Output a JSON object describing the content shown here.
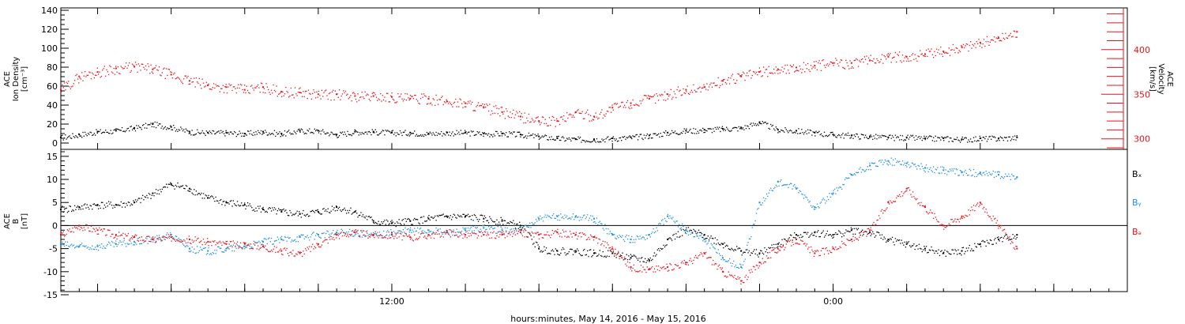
{
  "colors": {
    "black": "#000000",
    "red": "#e8131b",
    "blue": "#1f8ee0",
    "axis": "#000000"
  },
  "xaxis": {
    "label": "hours:minutes, May 14, 2016 - May 15, 2016",
    "ticks": [
      {
        "hour": 12,
        "label": "12:00"
      },
      {
        "hour": 24,
        "label": "0:00"
      }
    ],
    "range_hours": [
      3,
      32
    ]
  },
  "chart_data": [
    {
      "type": "scatter",
      "panel": "density",
      "ylabel": "ACE\nIon Density\n[cm⁻³]",
      "ylim": [
        0,
        140
      ],
      "yticks": [
        "0",
        "20",
        "40",
        "60",
        "80",
        "100",
        "120",
        "140"
      ],
      "right_axis": {
        "ylabel": "ACE\nVelocity\n[km/s]",
        "ylim": [
          290,
          445
        ],
        "ticks": [
          "300",
          "350",
          "400"
        ],
        "color": "#e8131b"
      },
      "series": [
        {
          "color": "black",
          "axis": "left",
          "x": [
            3.0,
            3.5,
            4.0,
            4.5,
            5.0,
            5.5,
            6.0,
            6.5,
            7.0,
            7.5,
            8.0,
            8.5,
            9.0,
            9.5,
            10.0,
            10.5,
            11.0,
            11.5,
            12.0,
            12.5,
            13.0,
            13.5,
            14.0,
            14.5,
            15.0,
            15.5,
            16.0,
            16.5,
            17.0,
            17.5,
            18.0,
            18.5,
            19.0,
            19.5,
            20.0,
            20.5,
            21.0,
            21.5,
            22.0,
            22.5,
            23.0,
            23.5,
            24.0,
            24.5,
            25.0,
            25.5,
            26.0,
            26.5,
            27.0,
            27.5,
            28.0,
            28.5,
            29.0
          ],
          "y": [
            6,
            9,
            12,
            13,
            16,
            20,
            17,
            12,
            11,
            11,
            10,
            12,
            10,
            13,
            13,
            9,
            12,
            12,
            11,
            11,
            10,
            11,
            11,
            10,
            10,
            9,
            7,
            5,
            4,
            4,
            5,
            6,
            8,
            11,
            13,
            14,
            15,
            16,
            22,
            14,
            13,
            11,
            9,
            8,
            7,
            6,
            6,
            5,
            5,
            4,
            5,
            5,
            6
          ]
        },
        {
          "color": "red",
          "axis": "right",
          "x": [
            3.0,
            3.5,
            4.0,
            4.5,
            5.0,
            5.5,
            6.0,
            6.5,
            7.0,
            7.5,
            8.0,
            8.5,
            9.0,
            9.5,
            10.0,
            10.5,
            11.0,
            11.5,
            12.0,
            12.5,
            13.0,
            13.5,
            14.0,
            14.5,
            15.0,
            15.5,
            16.0,
            16.5,
            17.0,
            17.5,
            18.0,
            18.5,
            19.0,
            19.5,
            20.0,
            20.5,
            21.0,
            21.5,
            22.0,
            22.5,
            23.0,
            23.5,
            24.0,
            24.5,
            25.0,
            25.5,
            26.0,
            26.5,
            27.0,
            27.5,
            28.0,
            28.5,
            29.0
          ],
          "y": [
            355,
            370,
            375,
            379,
            381,
            378,
            372,
            365,
            360,
            358,
            355,
            358,
            353,
            352,
            350,
            350,
            348,
            348,
            347,
            345,
            345,
            342,
            340,
            335,
            330,
            325,
            320,
            320,
            330,
            325,
            335,
            340,
            345,
            350,
            355,
            358,
            365,
            370,
            375,
            378,
            380,
            382,
            385,
            385,
            388,
            392,
            392,
            395,
            398,
            403,
            408,
            413,
            420
          ]
        }
      ]
    },
    {
      "type": "scatter",
      "panel": "magnetic_field",
      "ylabel": "ACE\nB\n[nT]",
      "ylim": [
        -15,
        16
      ],
      "yticks": [
        "-15",
        "-10",
        "-5",
        "0",
        "5",
        "10",
        "15"
      ],
      "legend": [
        "Bₓ",
        "Bᵧ",
        "Bₔ"
      ],
      "series": [
        {
          "name": "Bx",
          "color": "black",
          "x": [
            3.0,
            3.5,
            4.0,
            4.5,
            5.0,
            5.5,
            6.0,
            6.5,
            7.0,
            7.5,
            8.0,
            8.5,
            9.0,
            9.5,
            10.0,
            10.5,
            11.0,
            11.5,
            12.0,
            12.5,
            13.0,
            13.5,
            14.0,
            14.5,
            15.0,
            15.5,
            16.0,
            16.5,
            17.0,
            17.5,
            18.0,
            18.5,
            19.0,
            19.5,
            20.0,
            20.5,
            21.0,
            21.5,
            22.0,
            22.5,
            23.0,
            23.5,
            24.0,
            24.5,
            25.0,
            25.5,
            26.0,
            26.5,
            27.0,
            27.5,
            28.0,
            28.5,
            29.0
          ],
          "y": [
            3.5,
            4.0,
            4.5,
            4.5,
            5.0,
            7.0,
            9.0,
            8.0,
            6.0,
            5.0,
            4.5,
            3.5,
            3.0,
            2.5,
            3.0,
            4.0,
            3.0,
            1.0,
            0.5,
            1.0,
            1.5,
            2.0,
            2.0,
            1.5,
            1.0,
            0.0,
            -5.0,
            -5.5,
            -5.5,
            -6.0,
            -6.0,
            -7.0,
            -7.5,
            -3.0,
            -1.0,
            -2.0,
            -4.0,
            -5.5,
            -6.0,
            -4.0,
            -2.0,
            -1.5,
            -2.0,
            -1.0,
            -1.5,
            -3.0,
            -4.0,
            -5.0,
            -6.0,
            -5.5,
            -4.0,
            -3.0,
            -2.0
          ]
        },
        {
          "name": "By",
          "color": "blue",
          "x": [
            3.0,
            3.5,
            4.0,
            4.5,
            5.0,
            5.5,
            6.0,
            6.5,
            7.0,
            7.5,
            8.0,
            8.5,
            9.0,
            9.5,
            10.0,
            10.5,
            11.0,
            11.5,
            12.0,
            12.5,
            13.0,
            13.5,
            14.0,
            14.5,
            15.0,
            15.5,
            16.0,
            16.5,
            17.0,
            17.5,
            18.0,
            18.5,
            19.0,
            19.5,
            20.0,
            20.5,
            21.0,
            21.5,
            22.0,
            22.5,
            23.0,
            23.5,
            24.0,
            24.5,
            25.0,
            25.5,
            26.0,
            26.5,
            27.0,
            27.5,
            28.0,
            28.5,
            29.0
          ],
          "y": [
            -4.0,
            -4.5,
            -4.5,
            -4.0,
            -3.5,
            -3.0,
            -2.0,
            -5.0,
            -5.5,
            -5.0,
            -4.5,
            -3.5,
            -3.0,
            -2.5,
            -2.0,
            -1.5,
            -1.5,
            -2.0,
            -1.5,
            -1.0,
            -1.0,
            -1.5,
            -1.0,
            -0.5,
            -1.0,
            -1.0,
            1.5,
            2.0,
            2.0,
            1.5,
            -2.0,
            -3.0,
            -2.0,
            2.0,
            -1.0,
            -3.0,
            -7.0,
            -9.0,
            5.0,
            9.5,
            8.0,
            4.0,
            7.0,
            11.0,
            13.0,
            14.0,
            13.5,
            12.5,
            12.0,
            11.5,
            11.5,
            11.0,
            10.5
          ]
        },
        {
          "name": "Bz",
          "color": "red",
          "x": [
            3.0,
            3.5,
            4.0,
            4.5,
            5.0,
            5.5,
            6.0,
            6.5,
            7.0,
            7.5,
            8.0,
            8.5,
            9.0,
            9.5,
            10.0,
            10.5,
            11.0,
            11.5,
            12.0,
            12.5,
            13.0,
            13.5,
            14.0,
            14.5,
            15.0,
            15.5,
            16.0,
            16.5,
            17.0,
            17.5,
            18.0,
            18.5,
            19.0,
            19.5,
            20.0,
            20.5,
            21.0,
            21.5,
            22.0,
            22.5,
            23.0,
            23.5,
            24.0,
            24.5,
            25.0,
            25.5,
            26.0,
            26.5,
            27.0,
            27.5,
            28.0,
            28.5,
            29.0
          ],
          "y": [
            -2.0,
            0.0,
            -1.0,
            -2.0,
            -2.5,
            -3.0,
            -2.5,
            -3.0,
            -3.5,
            -4.0,
            -4.0,
            -4.5,
            -5.5,
            -6.0,
            -4.0,
            -2.0,
            -1.5,
            -2.0,
            -2.0,
            -2.5,
            -2.0,
            -1.5,
            -2.0,
            -2.0,
            -2.0,
            -1.5,
            -2.0,
            -1.5,
            -2.0,
            -2.5,
            -5.0,
            -9.0,
            -9.5,
            -9.0,
            -8.0,
            -6.0,
            -10.0,
            -12.0,
            -8.0,
            -5.0,
            -3.0,
            -6.0,
            -5.0,
            -3.0,
            -1.0,
            5.0,
            8.0,
            4.0,
            0.0,
            2.0,
            5.0,
            0.0,
            -5.0
          ]
        }
      ]
    }
  ]
}
